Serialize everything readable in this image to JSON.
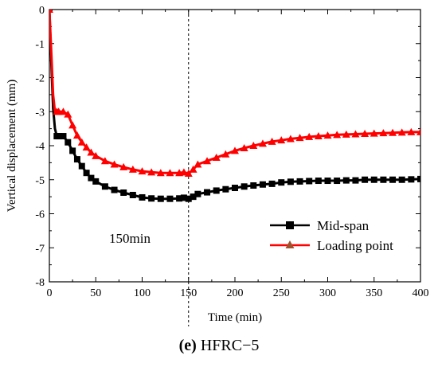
{
  "chart_data": {
    "type": "line",
    "xlabel": "Time (min)",
    "ylabel": "Vertical displacement (mm)",
    "xlim": [
      0,
      400
    ],
    "ylim": [
      -8,
      0
    ],
    "xticks": [
      0,
      50,
      100,
      150,
      200,
      250,
      300,
      350,
      400
    ],
    "yticks": [
      0,
      -1,
      -2,
      -3,
      -4,
      -5,
      -6,
      -7,
      -8
    ],
    "grid": false,
    "legend_position": "lower-right",
    "vline": {
      "x": 150,
      "style": "dashed"
    },
    "annotation": "150min",
    "series": [
      {
        "name": "Mid-span",
        "color": "#000000",
        "marker": "square",
        "x": [
          0,
          2,
          4,
          6,
          8,
          10,
          15,
          20,
          25,
          30,
          35,
          40,
          45,
          50,
          60,
          70,
          80,
          90,
          100,
          110,
          120,
          130,
          140,
          145,
          150,
          155,
          160,
          170,
          180,
          190,
          200,
          210,
          220,
          230,
          240,
          250,
          260,
          270,
          280,
          290,
          300,
          310,
          320,
          330,
          340,
          350,
          360,
          370,
          380,
          390,
          400
        ],
        "y": [
          0,
          -1.5,
          -2.9,
          -3.5,
          -3.72,
          -3.72,
          -3.72,
          -3.9,
          -4.15,
          -4.4,
          -4.6,
          -4.8,
          -4.95,
          -5.05,
          -5.2,
          -5.3,
          -5.38,
          -5.45,
          -5.52,
          -5.55,
          -5.56,
          -5.56,
          -5.55,
          -5.53,
          -5.56,
          -5.5,
          -5.42,
          -5.37,
          -5.32,
          -5.28,
          -5.24,
          -5.2,
          -5.17,
          -5.14,
          -5.12,
          -5.08,
          -5.06,
          -5.05,
          -5.04,
          -5.03,
          -5.03,
          -5.03,
          -5.02,
          -5.02,
          -5.0,
          -5.0,
          -5.0,
          -5.0,
          -5.0,
          -4.99,
          -4.98
        ]
      },
      {
        "name": "Loading point",
        "color": "#ff0000",
        "marker": "triangle",
        "x": [
          0,
          2,
          4,
          6,
          8,
          10,
          15,
          20,
          25,
          30,
          35,
          40,
          45,
          50,
          60,
          70,
          80,
          90,
          100,
          110,
          120,
          130,
          140,
          145,
          150,
          155,
          160,
          170,
          180,
          190,
          200,
          210,
          220,
          230,
          240,
          250,
          260,
          270,
          280,
          290,
          300,
          310,
          320,
          330,
          340,
          350,
          360,
          370,
          380,
          390,
          400
        ],
        "y": [
          0,
          -1.2,
          -2.5,
          -3.0,
          -3.0,
          -3.0,
          -3.0,
          -3.08,
          -3.4,
          -3.7,
          -3.9,
          -4.05,
          -4.2,
          -4.3,
          -4.45,
          -4.55,
          -4.63,
          -4.7,
          -4.75,
          -4.78,
          -4.8,
          -4.8,
          -4.8,
          -4.78,
          -4.82,
          -4.7,
          -4.55,
          -4.45,
          -4.35,
          -4.25,
          -4.15,
          -4.07,
          -4.0,
          -3.94,
          -3.88,
          -3.84,
          -3.8,
          -3.77,
          -3.74,
          -3.72,
          -3.7,
          -3.68,
          -3.67,
          -3.66,
          -3.65,
          -3.64,
          -3.63,
          -3.62,
          -3.61,
          -3.6,
          -3.6
        ]
      }
    ]
  },
  "caption": {
    "letter": "(e)",
    "text": " HFRC−5"
  }
}
